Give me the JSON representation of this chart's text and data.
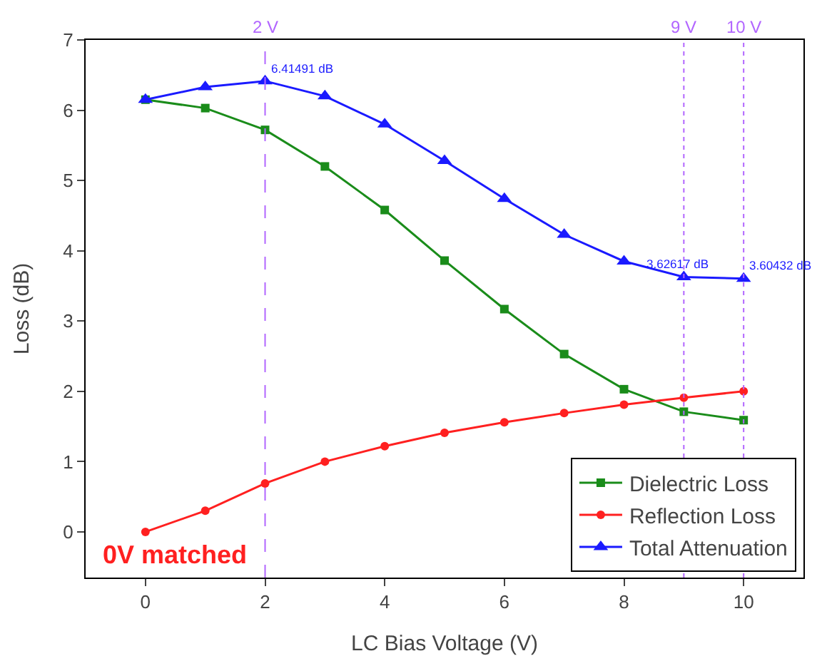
{
  "chart_data": {
    "type": "line",
    "xlabel": "LC Bias Voltage (V)",
    "ylabel": "Loss (dB)",
    "x": [
      0,
      1,
      2,
      3,
      4,
      5,
      6,
      7,
      8,
      9,
      10
    ],
    "xlim": [
      -1,
      11
    ],
    "xticks": [
      0,
      2,
      4,
      6,
      8,
      10
    ],
    "ylim": [
      -0.65,
      7
    ],
    "yticks": [
      0,
      1,
      2,
      3,
      4,
      5,
      6,
      7
    ],
    "grid": false,
    "legend": "bottom right",
    "line_style": "solid",
    "series": [
      {
        "name": "Dielectric Loss",
        "color": "#1a8c1a",
        "marker": "square",
        "values": [
          6.15,
          6.03,
          5.72,
          5.2,
          4.58,
          3.86,
          3.17,
          2.53,
          2.03,
          1.71,
          1.59
        ]
      },
      {
        "name": "Reflection Loss",
        "color": "#ff2020",
        "marker": "circle",
        "values": [
          0,
          0.3,
          0.69,
          1.0,
          1.22,
          1.41,
          1.56,
          1.69,
          1.81,
          1.91,
          2.0
        ]
      },
      {
        "name": "Total Attenuation",
        "color": "#1a1aff",
        "marker": "triangle",
        "values": [
          6.15,
          6.33,
          6.41491,
          6.2,
          5.8,
          5.28,
          4.74,
          4.23,
          3.85,
          3.62617,
          3.60432
        ]
      }
    ],
    "ref_lines": [
      {
        "axis": "x",
        "value": 2,
        "label": "2 V",
        "color": "#b266ff",
        "line_style": "dashed"
      },
      {
        "axis": "x",
        "value": 9,
        "label": "9 V",
        "color": "#b266ff",
        "line_style": "dotted"
      },
      {
        "axis": "x",
        "value": 10,
        "label": "10 V",
        "color": "#b266ff",
        "line_style": "dotted"
      }
    ],
    "annotations": [
      {
        "text": "6.41491 dB",
        "x": 2,
        "y": 6.41491
      },
      {
        "text": "3.62617 dB",
        "x": 9,
        "y": 3.62617
      },
      {
        "text": "3.60432 dB",
        "x": 10,
        "y": 3.60432
      },
      "0V matched"
    ]
  }
}
